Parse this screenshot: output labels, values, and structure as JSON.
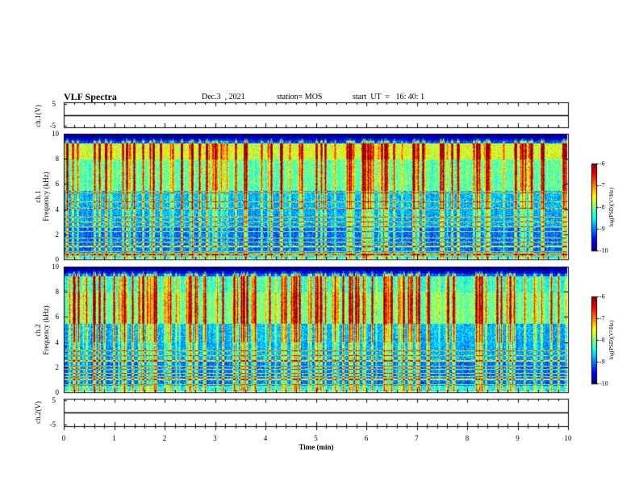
{
  "header": {
    "title": "VLF Spectra",
    "date": "Dec.3  , 2021",
    "station": "station= MOS",
    "start": "start  UT  =   16: 40: 1"
  },
  "chart_data": [
    {
      "type": "line",
      "name": "ch1-waveform",
      "ylabel": "ch.1(V)",
      "ylim": [
        -5,
        5
      ],
      "yticks": [
        "5",
        "-5"
      ],
      "xlim": [
        0,
        10
      ],
      "note": "flat waveform near 0 V"
    },
    {
      "type": "heatmap",
      "name": "ch1-spectrogram",
      "ylabel": "ch.1\nFrequency (kHz)",
      "ylabel_line1": "ch.1",
      "ylabel_line2": "Frequency (kHz)",
      "ylim": [
        0,
        10
      ],
      "yticks": [
        "0",
        "2",
        "4",
        "6",
        "8",
        "10"
      ],
      "xlim": [
        0,
        10
      ],
      "colorbar": {
        "label": "log(PSD)(V²/Hz)",
        "range": [
          -10,
          -6
        ],
        "ticks": [
          "-6",
          "-7",
          "-8",
          "-9",
          "-10"
        ]
      }
    },
    {
      "type": "heatmap",
      "name": "ch2-spectrogram",
      "ylabel": "ch.2\nFrequency (kHz)",
      "ylabel_line1": "ch.2",
      "ylabel_line2": "Frequency (kHz)",
      "ylim": [
        0,
        10
      ],
      "yticks": [
        "0",
        "2",
        "4",
        "6",
        "8",
        "10"
      ],
      "xlim": [
        0,
        10
      ],
      "colorbar": {
        "label": "log(PSD)(V²/Hz)",
        "range": [
          -10,
          -6
        ],
        "ticks": [
          "-6",
          "-7",
          "-8",
          "-9",
          "-10"
        ]
      }
    },
    {
      "type": "line",
      "name": "ch2-waveform",
      "ylabel": "ch.2(V)",
      "ylim": [
        -5,
        5
      ],
      "yticks": [
        "5",
        "-5"
      ],
      "xlim": [
        0,
        10
      ],
      "xlabel": "Time  (min)",
      "xticks": [
        "0",
        "1",
        "2",
        "3",
        "4",
        "5",
        "6",
        "7",
        "8",
        "9",
        "10"
      ]
    }
  ]
}
